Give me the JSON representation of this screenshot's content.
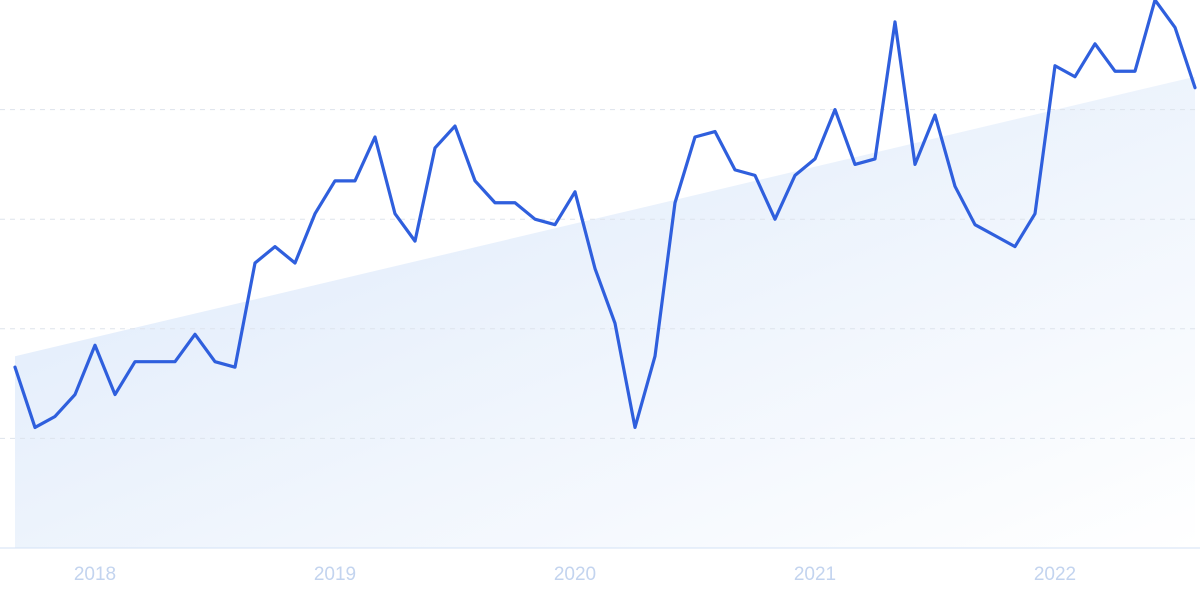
{
  "chart_data": {
    "type": "line",
    "categories": [
      null,
      null,
      null,
      null,
      "2018",
      null,
      null,
      null,
      null,
      null,
      null,
      null,
      null,
      null,
      null,
      null,
      "2019",
      null,
      null,
      null,
      null,
      null,
      null,
      null,
      null,
      null,
      null,
      null,
      "2020",
      null,
      null,
      null,
      null,
      null,
      null,
      null,
      null,
      null,
      null,
      null,
      "2021",
      null,
      null,
      null,
      null,
      null,
      null,
      null,
      null,
      null,
      null,
      null,
      "2022",
      null,
      null,
      null,
      null,
      null,
      null,
      null
    ],
    "values": [
      33,
      22,
      24,
      28,
      37,
      28,
      34,
      34,
      34,
      39,
      34,
      33,
      52,
      55,
      52,
      61,
      67,
      67,
      75,
      61,
      56,
      73,
      77,
      67,
      63,
      63,
      60,
      59,
      65,
      51,
      41,
      22,
      35,
      63,
      75,
      76,
      69,
      68,
      60,
      68,
      71,
      80,
      70,
      71,
      96,
      70,
      79,
      66,
      59,
      57,
      55,
      61,
      88,
      86,
      92,
      87,
      87,
      100,
      95,
      84
    ],
    "trend": [
      35,
      86
    ],
    "color": "#2f5fdd",
    "ylim": [
      0,
      100
    ],
    "yticks": [
      20,
      40,
      60,
      80
    ],
    "grid": true
  }
}
